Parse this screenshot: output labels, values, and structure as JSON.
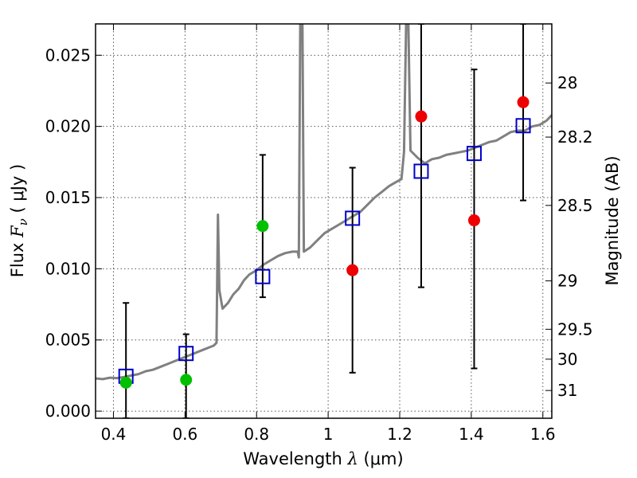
{
  "chart_data": {
    "type": "scatter",
    "title": "",
    "xlabel": {
      "prefix": "Wavelength  ",
      "symbol": "λ",
      "units": " (μm)"
    },
    "ylabel": {
      "prefix": "Flux  ",
      "symbol": "F",
      "sub": "ν",
      "units": "  ( μJy )"
    },
    "y2label": "Magnitude (AB)",
    "xlim": [
      0.35,
      1.625
    ],
    "ylim": [
      -0.0005,
      0.0272
    ],
    "grid": true,
    "legend": "none",
    "x_ticks": [
      {
        "value": 0.4,
        "label": "0.4"
      },
      {
        "value": 0.6,
        "label": "0.6"
      },
      {
        "value": 0.8,
        "label": "0.8"
      },
      {
        "value": 1.0,
        "label": "1"
      },
      {
        "value": 1.2,
        "label": "1.2"
      },
      {
        "value": 1.4,
        "label": "1.4"
      },
      {
        "value": 1.6,
        "label": "1.6"
      }
    ],
    "y_ticks": [
      {
        "value": 0.0,
        "label": "0.000"
      },
      {
        "value": 0.005,
        "label": "0.005"
      },
      {
        "value": 0.01,
        "label": "0.010"
      },
      {
        "value": 0.015,
        "label": "0.015"
      },
      {
        "value": 0.02,
        "label": "0.020"
      },
      {
        "value": 0.025,
        "label": "0.025"
      }
    ],
    "y2_ticks": [
      {
        "flux": 0.02305,
        "label": "28"
      },
      {
        "flux": 0.01925,
        "label": "28.2"
      },
      {
        "flux": 0.01445,
        "label": "28.5"
      },
      {
        "flux": 0.00915,
        "label": "29"
      },
      {
        "flux": 0.00575,
        "label": "29.5"
      },
      {
        "flux": 0.00365,
        "label": "30"
      },
      {
        "flux": 0.00145,
        "label": "31"
      }
    ],
    "colors": {
      "spectrum": "#808080",
      "model_box": "#0000cc",
      "green_points": "#00c000",
      "red_points": "#ee0000",
      "error_bars": "#000000",
      "grid": "#555555"
    },
    "spectrum": [
      [
        0.35,
        0.0023
      ],
      [
        0.37,
        0.00225
      ],
      [
        0.39,
        0.00235
      ],
      [
        0.41,
        0.00232
      ],
      [
        0.43,
        0.0024
      ],
      [
        0.45,
        0.0025
      ],
      [
        0.47,
        0.0026
      ],
      [
        0.49,
        0.0028
      ],
      [
        0.51,
        0.0029
      ],
      [
        0.53,
        0.0031
      ],
      [
        0.55,
        0.0033
      ],
      [
        0.57,
        0.0035
      ],
      [
        0.59,
        0.0037
      ],
      [
        0.61,
        0.0039
      ],
      [
        0.63,
        0.0041
      ],
      [
        0.65,
        0.0043
      ],
      [
        0.67,
        0.0045
      ],
      [
        0.68,
        0.0046
      ],
      [
        0.688,
        0.0048
      ],
      [
        0.692,
        0.0138
      ],
      [
        0.696,
        0.0085
      ],
      [
        0.705,
        0.0072
      ],
      [
        0.72,
        0.0076
      ],
      [
        0.735,
        0.0082
      ],
      [
        0.75,
        0.0086
      ],
      [
        0.765,
        0.0092
      ],
      [
        0.78,
        0.0096
      ],
      [
        0.8,
        0.0099
      ],
      [
        0.82,
        0.0103
      ],
      [
        0.84,
        0.0106
      ],
      [
        0.86,
        0.0109
      ],
      [
        0.88,
        0.0111
      ],
      [
        0.9,
        0.0112
      ],
      [
        0.915,
        0.0112
      ],
      [
        0.918,
        0.0108
      ],
      [
        0.922,
        0.0274
      ],
      [
        0.928,
        0.0274
      ],
      [
        0.932,
        0.0112
      ],
      [
        0.95,
        0.0115
      ],
      [
        0.97,
        0.012
      ],
      [
        0.99,
        0.0125
      ],
      [
        1.01,
        0.0128
      ],
      [
        1.03,
        0.0131
      ],
      [
        1.05,
        0.0134
      ],
      [
        1.07,
        0.0137
      ],
      [
        1.09,
        0.014
      ],
      [
        1.11,
        0.0145
      ],
      [
        1.13,
        0.015
      ],
      [
        1.15,
        0.0154
      ],
      [
        1.17,
        0.0158
      ],
      [
        1.19,
        0.0161
      ],
      [
        1.205,
        0.0163
      ],
      [
        1.212,
        0.0182
      ],
      [
        1.218,
        0.0274
      ],
      [
        1.224,
        0.0274
      ],
      [
        1.23,
        0.0183
      ],
      [
        1.25,
        0.0178
      ],
      [
        1.27,
        0.0174
      ],
      [
        1.29,
        0.0177
      ],
      [
        1.31,
        0.0178
      ],
      [
        1.33,
        0.018
      ],
      [
        1.35,
        0.0181
      ],
      [
        1.37,
        0.0182
      ],
      [
        1.39,
        0.0183
      ],
      [
        1.41,
        0.0185
      ],
      [
        1.43,
        0.0187
      ],
      [
        1.45,
        0.0189
      ],
      [
        1.47,
        0.019
      ],
      [
        1.49,
        0.0193
      ],
      [
        1.51,
        0.0196
      ],
      [
        1.53,
        0.0197
      ],
      [
        1.55,
        0.0197
      ],
      [
        1.57,
        0.02
      ],
      [
        1.59,
        0.0201
      ],
      [
        1.61,
        0.0204
      ],
      [
        1.625,
        0.0208
      ]
    ],
    "model_boxes": [
      {
        "x": 0.435,
        "y": 0.00245
      },
      {
        "x": 0.603,
        "y": 0.00405
      },
      {
        "x": 0.817,
        "y": 0.00945
      },
      {
        "x": 1.068,
        "y": 0.01355
      },
      {
        "x": 1.26,
        "y": 0.01685
      },
      {
        "x": 1.408,
        "y": 0.0181
      },
      {
        "x": 1.545,
        "y": 0.02005
      }
    ],
    "green_points": [
      {
        "x": 0.435,
        "y": 0.002,
        "lo": -0.0005,
        "hi": 0.0076
      },
      {
        "x": 0.603,
        "y": 0.0022,
        "lo": -0.0005,
        "hi": 0.0054
      },
      {
        "x": 0.817,
        "y": 0.013,
        "lo": 0.008,
        "hi": 0.018
      }
    ],
    "red_points": [
      {
        "x": 1.068,
        "y": 0.0099,
        "lo": 0.0027,
        "hi": 0.0171
      },
      {
        "x": 1.26,
        "y": 0.0207,
        "lo": 0.0087,
        "hi": 0.0272
      },
      {
        "x": 1.408,
        "y": 0.0134,
        "lo": 0.003,
        "hi": 0.024
      },
      {
        "x": 1.545,
        "y": 0.0217,
        "lo": 0.0148,
        "hi": 0.0272
      }
    ]
  }
}
